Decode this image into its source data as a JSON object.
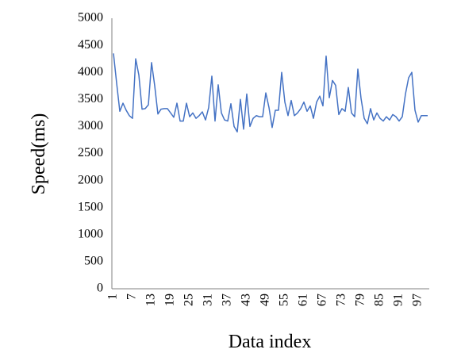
{
  "chart_data": {
    "type": "line",
    "x_label": "Data index",
    "y_label": "Speed(ms)",
    "x": [
      1,
      2,
      3,
      4,
      5,
      6,
      7,
      8,
      9,
      10,
      11,
      12,
      13,
      14,
      15,
      16,
      17,
      18,
      19,
      20,
      21,
      22,
      23,
      24,
      25,
      26,
      27,
      28,
      29,
      30,
      31,
      32,
      33,
      34,
      35,
      36,
      37,
      38,
      39,
      40,
      41,
      42,
      43,
      44,
      45,
      46,
      47,
      48,
      49,
      50,
      51,
      52,
      53,
      54,
      55,
      56,
      57,
      58,
      59,
      60,
      61,
      62,
      63,
      64,
      65,
      66,
      67,
      68,
      69,
      70,
      71,
      72,
      73,
      74,
      75,
      76,
      77,
      78,
      79,
      80,
      81,
      82,
      83,
      84,
      85,
      86,
      87,
      88,
      89,
      90,
      91,
      92,
      93,
      94,
      95,
      96,
      97,
      98,
      99,
      100
    ],
    "series": [
      {
        "color": "#4472c4",
        "values": [
          4350,
          3800,
          3280,
          3430,
          3300,
          3200,
          3150,
          4250,
          3950,
          3320,
          3330,
          3400,
          4180,
          3750,
          3230,
          3320,
          3330,
          3330,
          3250,
          3170,
          3430,
          3100,
          3100,
          3430,
          3180,
          3250,
          3150,
          3200,
          3270,
          3120,
          3350,
          3930,
          3100,
          3770,
          3250,
          3120,
          3100,
          3420,
          3000,
          2900,
          3500,
          2950,
          3600,
          3000,
          3150,
          3200,
          3180,
          3180,
          3620,
          3350,
          2980,
          3300,
          3300,
          4000,
          3450,
          3200,
          3480,
          3200,
          3250,
          3330,
          3450,
          3280,
          3380,
          3150,
          3450,
          3560,
          3380,
          4300,
          3530,
          3850,
          3760,
          3220,
          3330,
          3280,
          3720,
          3250,
          3180,
          4060,
          3520,
          3150,
          3050,
          3330,
          3120,
          3250,
          3150,
          3100,
          3180,
          3120,
          3220,
          3180,
          3100,
          3180,
          3600,
          3900,
          4000,
          3300,
          3080,
          3200,
          3200,
          3200
        ]
      }
    ],
    "xlim": [
      0.5,
      100.5
    ],
    "xticks": [
      1,
      7,
      13,
      19,
      25,
      31,
      37,
      43,
      49,
      55,
      61,
      67,
      73,
      79,
      85,
      91,
      97
    ],
    "ylim": [
      0,
      5000
    ],
    "yticks": [
      0,
      500,
      1000,
      1500,
      2000,
      2500,
      3000,
      3500,
      4000,
      4500,
      5000
    ]
  }
}
